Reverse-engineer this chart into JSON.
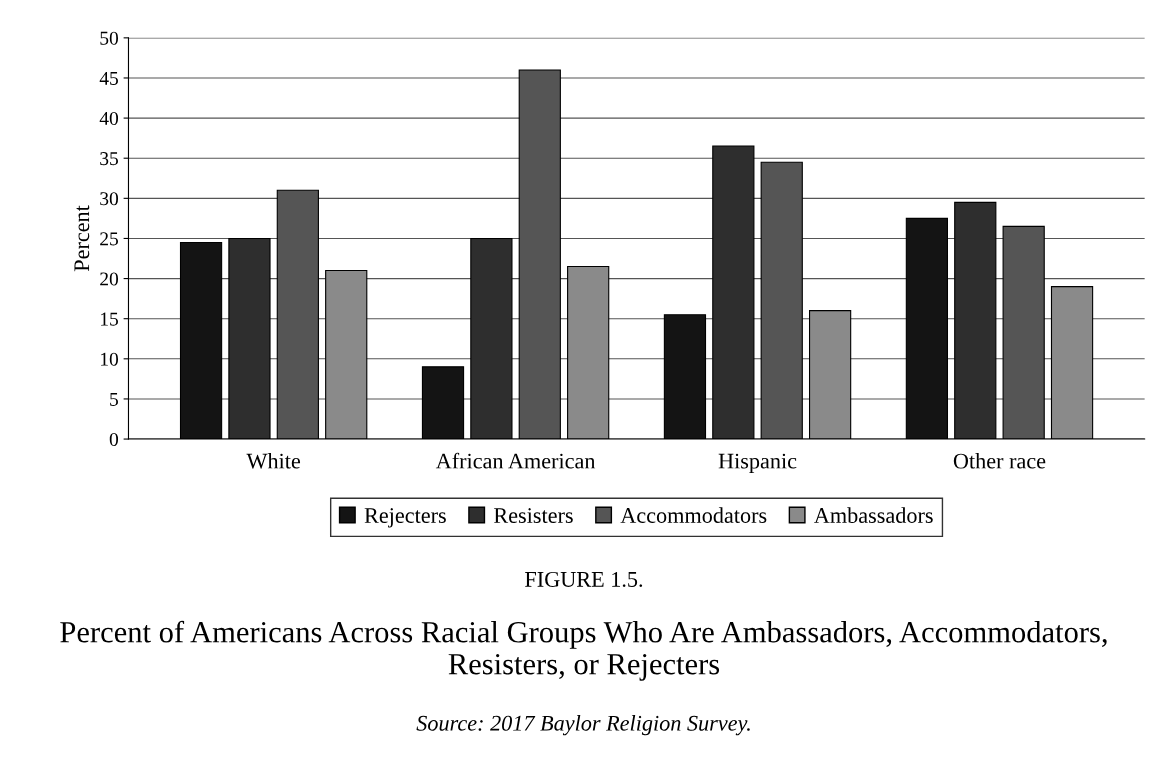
{
  "chart_data": {
    "type": "bar",
    "title": "FIGURE 1.5.",
    "subtitle": "Percent of Americans Across Racial Groups Who Are Ambassadors, Accommodators, Resisters, or Rejecters",
    "ylabel": "Percent",
    "annotations": [
      "Source: 2017 Baylor Religion Survey."
    ],
    "categories": [
      "White",
      "African American",
      "Hispanic",
      "Other race"
    ],
    "series": [
      {
        "name": "Rejecters",
        "color": "#141414",
        "values": [
          24.5,
          9,
          15.5,
          27.5
        ]
      },
      {
        "name": "Resisters",
        "color": "#2e2e2e",
        "values": [
          25,
          25,
          36.5,
          29.5
        ]
      },
      {
        "name": "Accommodators",
        "color": "#555555",
        "values": [
          31,
          46,
          34.5,
          26.5
        ]
      },
      {
        "name": "Ambassadors",
        "color": "#8a8a8a",
        "values": [
          21,
          21.5,
          16,
          19
        ]
      }
    ],
    "ylim": [
      0,
      50
    ],
    "yticks": [
      0,
      5,
      10,
      15,
      20,
      25,
      30,
      35,
      40,
      45,
      50
    ],
    "grid": "y",
    "legend": "bottom"
  }
}
